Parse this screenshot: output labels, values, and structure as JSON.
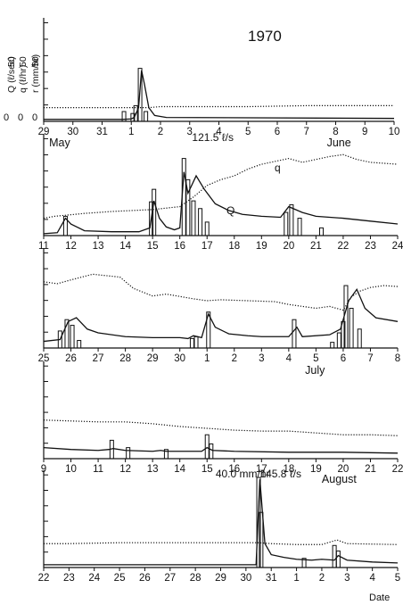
{
  "chart_data": {
    "type": "line",
    "title": "1970",
    "y_axis_labels": [
      "Q (ℓ/sec)",
      "q (ℓ/hr)",
      "r (mm/hr)"
    ],
    "y_tick_values": [
      "50",
      "50",
      "50"
    ],
    "y_zero_labels": [
      "0",
      "0",
      "0"
    ],
    "xlabel": "Date",
    "series_labels": {
      "Q": "Q",
      "q": "q"
    },
    "panels": [
      {
        "id": "p1",
        "x_ticks": [
          "29",
          "30",
          "31",
          "1",
          "2",
          "3",
          "4",
          "5",
          "6",
          "7",
          "8",
          "9",
          "10"
        ],
        "month_labels": [],
        "annotations": [],
        "Q": [
          [
            0,
            2
          ],
          [
            2.7,
            2
          ],
          [
            3,
            2.5
          ],
          [
            3.1,
            4
          ],
          [
            3.25,
            14
          ],
          [
            3.35,
            52
          ],
          [
            3.45,
            38
          ],
          [
            3.6,
            14
          ],
          [
            3.8,
            6
          ],
          [
            4.2,
            4
          ],
          [
            12,
            3
          ]
        ],
        "q": [
          [
            0,
            14
          ],
          [
            1,
            14
          ],
          [
            2.5,
            14
          ],
          [
            3.6,
            14
          ],
          [
            4,
            15
          ],
          [
            6,
            15
          ],
          [
            7,
            15
          ],
          [
            9,
            16
          ],
          [
            12,
            16
          ]
        ],
        "rain": [
          [
            2.75,
            10
          ],
          [
            3.05,
            8
          ],
          [
            3.15,
            16
          ],
          [
            3.3,
            54
          ],
          [
            3.5,
            10
          ]
        ]
      },
      {
        "id": "p2",
        "x_ticks": [
          "11",
          "12",
          "13",
          "14",
          "15",
          "16",
          "17",
          "18",
          "19",
          "20",
          "21",
          "22",
          "23",
          "24"
        ],
        "month_labels": [
          {
            "text": "May",
            "x": 0.2
          },
          {
            "text": "June",
            "x": 10.4
          }
        ],
        "annotations": [
          {
            "text": "121.5 ℓ/s",
            "x": 5.45
          }
        ],
        "Q": [
          [
            0,
            2
          ],
          [
            0.5,
            3
          ],
          [
            0.8,
            18
          ],
          [
            1,
            12
          ],
          [
            1.5,
            5
          ],
          [
            2.5,
            4
          ],
          [
            3.5,
            4
          ],
          [
            3.9,
            8
          ],
          [
            4.05,
            36
          ],
          [
            4.25,
            18
          ],
          [
            4.5,
            9
          ],
          [
            4.8,
            6
          ],
          [
            5,
            8
          ],
          [
            5.15,
            66
          ],
          [
            5.3,
            44
          ],
          [
            5.6,
            62
          ],
          [
            5.9,
            48
          ],
          [
            6.3,
            33
          ],
          [
            6.8,
            26
          ],
          [
            7.3,
            22
          ],
          [
            8,
            20
          ],
          [
            8.7,
            19
          ],
          [
            9,
            30
          ],
          [
            9.5,
            24
          ],
          [
            10,
            20
          ],
          [
            11,
            18
          ],
          [
            12,
            15
          ],
          [
            13,
            12
          ]
        ],
        "q": [
          [
            0,
            18
          ],
          [
            0.4,
            20
          ],
          [
            1.5,
            23
          ],
          [
            2.5,
            25
          ],
          [
            4,
            27
          ],
          [
            5,
            30
          ],
          [
            5.5,
            40
          ],
          [
            6,
            52
          ],
          [
            6.5,
            58
          ],
          [
            7,
            62
          ],
          [
            7.5,
            69
          ],
          [
            8,
            74
          ],
          [
            8.5,
            77
          ],
          [
            9,
            80
          ],
          [
            9.5,
            76
          ],
          [
            10,
            79
          ],
          [
            10.5,
            82
          ],
          [
            11,
            84
          ],
          [
            11.5,
            79
          ],
          [
            12,
            76
          ],
          [
            13,
            74
          ]
        ],
        "rain": [
          [
            0.8,
            20
          ],
          [
            3.95,
            35
          ],
          [
            4.05,
            48
          ],
          [
            5.15,
            80
          ],
          [
            5.3,
            58
          ],
          [
            5.5,
            36
          ],
          [
            5.75,
            28
          ],
          [
            6,
            14
          ],
          [
            8.9,
            24
          ],
          [
            9.1,
            32
          ],
          [
            9.4,
            18
          ],
          [
            10.2,
            8
          ]
        ]
      },
      {
        "id": "p3",
        "x_ticks": [
          "25",
          "26",
          "27",
          "28",
          "29",
          "30",
          "1",
          "2",
          "3",
          "4",
          "5",
          "6",
          "7",
          "8"
        ],
        "month_labels": [],
        "annotations": [],
        "Q": [
          [
            0,
            7
          ],
          [
            0.6,
            9
          ],
          [
            0.9,
            28
          ],
          [
            1.2,
            32
          ],
          [
            1.6,
            20
          ],
          [
            2,
            16
          ],
          [
            3,
            12
          ],
          [
            4,
            11
          ],
          [
            5,
            11
          ],
          [
            5.3,
            10
          ],
          [
            5.5,
            13
          ],
          [
            5.8,
            11
          ],
          [
            6.05,
            36
          ],
          [
            6.3,
            22
          ],
          [
            6.8,
            15
          ],
          [
            7.5,
            13
          ],
          [
            8,
            12
          ],
          [
            9,
            12
          ],
          [
            9.3,
            22
          ],
          [
            9.5,
            12
          ],
          [
            10.5,
            14
          ],
          [
            10.9,
            20
          ],
          [
            11.2,
            50
          ],
          [
            11.5,
            62
          ],
          [
            11.8,
            42
          ],
          [
            12.2,
            32
          ],
          [
            13,
            28
          ]
        ],
        "q": [
          [
            0,
            70
          ],
          [
            0.5,
            68
          ],
          [
            1,
            72
          ],
          [
            1.8,
            78
          ],
          [
            2.8,
            75
          ],
          [
            3.3,
            63
          ],
          [
            4,
            55
          ],
          [
            4.5,
            57
          ],
          [
            5.5,
            52
          ],
          [
            6,
            50
          ],
          [
            6.5,
            51
          ],
          [
            7.5,
            50
          ],
          [
            8.5,
            49
          ],
          [
            9,
            46
          ],
          [
            9.5,
            44
          ],
          [
            10,
            42
          ],
          [
            10.5,
            44
          ],
          [
            11,
            40
          ],
          [
            11.3,
            54
          ],
          [
            11.6,
            60
          ],
          [
            12,
            64
          ],
          [
            12.5,
            66
          ],
          [
            13,
            65
          ]
        ],
        "rain": [
          [
            0.6,
            18
          ],
          [
            0.85,
            30
          ],
          [
            1.05,
            24
          ],
          [
            1.3,
            8
          ],
          [
            5.45,
            10
          ],
          [
            5.6,
            12
          ],
          [
            6.05,
            38
          ],
          [
            9.2,
            30
          ],
          [
            10.6,
            6
          ],
          [
            10.85,
            16
          ],
          [
            11,
            28
          ],
          [
            11.1,
            66
          ],
          [
            11.3,
            42
          ],
          [
            11.6,
            20
          ]
        ]
      },
      {
        "id": "p4",
        "x_ticks": [
          "9",
          "10",
          "11",
          "12",
          "13",
          "14",
          "15",
          "16",
          "17",
          "18",
          "19",
          "20",
          "21",
          "22"
        ],
        "month_labels": [
          {
            "text": "July",
            "x": 9.6
          }
        ],
        "annotations": [],
        "Q": [
          [
            0,
            12
          ],
          [
            1,
            10
          ],
          [
            2,
            9
          ],
          [
            2.4,
            10
          ],
          [
            2.55,
            11
          ],
          [
            3,
            9
          ],
          [
            4,
            8
          ],
          [
            4.3,
            9
          ],
          [
            4.5,
            8
          ],
          [
            5.8,
            8
          ],
          [
            6,
            12
          ],
          [
            6.2,
            9
          ],
          [
            7,
            8
          ],
          [
            9,
            7
          ],
          [
            11,
            7
          ],
          [
            13,
            6
          ]
        ],
        "q": [
          [
            0,
            42
          ],
          [
            1,
            41
          ],
          [
            2,
            40
          ],
          [
            3,
            40
          ],
          [
            4,
            38
          ],
          [
            5,
            35
          ],
          [
            6,
            33
          ],
          [
            7,
            31
          ],
          [
            8,
            30
          ],
          [
            9,
            30
          ],
          [
            10,
            28
          ],
          [
            11,
            26
          ],
          [
            12,
            26
          ],
          [
            13,
            25
          ]
        ],
        "rain": [
          [
            2.5,
            20
          ],
          [
            3.1,
            12
          ],
          [
            4.5,
            10
          ],
          [
            6,
            26
          ],
          [
            6.15,
            16
          ]
        ]
      },
      {
        "id": "p5",
        "x_ticks": [
          "22",
          "23",
          "24",
          "25",
          "26",
          "27",
          "28",
          "29",
          "30",
          "31",
          "1",
          "2",
          "3",
          "4",
          "5"
        ],
        "month_labels": [
          {
            "text": "August",
            "x": 11.0
          }
        ],
        "annotations": [
          {
            "text": "40.0 mm/hr",
            "x": 6.8
          },
          {
            "text": "145.8 ℓ/s",
            "x": 8.55
          }
        ],
        "Q": [
          [
            0,
            3
          ],
          [
            4,
            3
          ],
          [
            8,
            3
          ],
          [
            8.4,
            3
          ],
          [
            8.55,
            96
          ],
          [
            8.75,
            26
          ],
          [
            9,
            14
          ],
          [
            9.5,
            11
          ],
          [
            10,
            9
          ],
          [
            10.6,
            8
          ],
          [
            11,
            9
          ],
          [
            11.5,
            8
          ],
          [
            11.65,
            13
          ],
          [
            12,
            8
          ],
          [
            13,
            6
          ],
          [
            14,
            5
          ]
        ],
        "q": [
          [
            0,
            26
          ],
          [
            1,
            26
          ],
          [
            3,
            27
          ],
          [
            5,
            27
          ],
          [
            7,
            27
          ],
          [
            8.5,
            27
          ],
          [
            9,
            26
          ],
          [
            10,
            25
          ],
          [
            11,
            25
          ],
          [
            11.6,
            30
          ],
          [
            12,
            26
          ],
          [
            14,
            25
          ]
        ],
        "rain": [
          [
            8.5,
            98
          ],
          [
            8.6,
            60
          ],
          [
            10.3,
            10
          ],
          [
            11.5,
            24
          ],
          [
            11.65,
            18
          ]
        ]
      }
    ]
  }
}
